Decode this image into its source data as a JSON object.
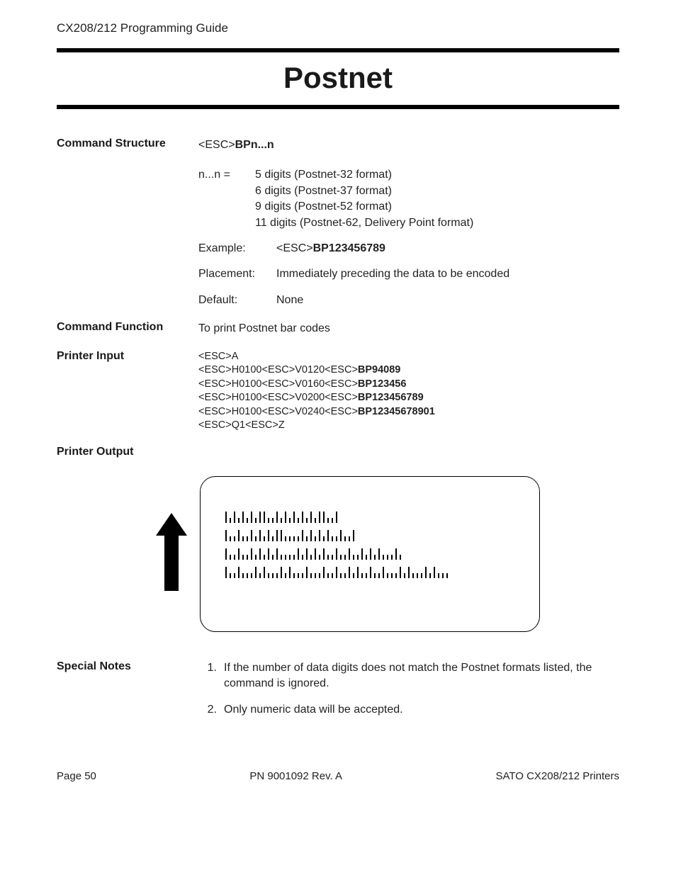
{
  "header": {
    "running_head": "CX208/212 Programming Guide"
  },
  "title": "Postnet",
  "command_structure": {
    "label": "Command Structure",
    "syntax_prefix": "<ESC>",
    "syntax_bold": "BPn...n",
    "param_label": "n...n  =",
    "param_lines": [
      "5 digits (Postnet-32 format)",
      "6 digits (Postnet-37 format)",
      "9 digits (Postnet-52 format)",
      "11 digits (Postnet-62, Delivery Point format)"
    ],
    "example_label": "Example:",
    "example_prefix": "<ESC>",
    "example_bold": "BP123456789",
    "placement_label": "Placement:",
    "placement_value": "Immediately preceding the data to be encoded",
    "default_label": "Default:",
    "default_value": "None"
  },
  "command_function": {
    "label": "Command Function",
    "text": "To print Postnet bar codes"
  },
  "printer_input": {
    "label": "Printer Input",
    "lines": [
      {
        "plain": "<ESC>A",
        "bold": ""
      },
      {
        "plain": "<ESC>H0100<ESC>V0120<ESC>",
        "bold": "BP94089"
      },
      {
        "plain": "<ESC>H0100<ESC>V0160<ESC>",
        "bold": "BP123456"
      },
      {
        "plain": "<ESC>H0100<ESC>V0200<ESC>",
        "bold": "BP123456789"
      },
      {
        "plain": "<ESC>H0100<ESC>V0240<ESC>",
        "bold": "BP12345678901"
      },
      {
        "plain": "<ESC>Q1<ESC>Z",
        "bold": ""
      }
    ]
  },
  "printer_output": {
    "label": "Printer Output",
    "arrow_color": "#000000",
    "frame_border_color": "#000000",
    "bar_color": "#000000",
    "barcodes": [
      "tststststtsststststststtsst",
      "tsstsststststtsssststststsstsst",
      "tsstsststststsssststststsstsstsstststsssts",
      "tsstssststssststssstssstsstsststsstsstssststssststsss"
    ]
  },
  "special_notes": {
    "label": "Special Notes",
    "items": [
      "If the number of data digits does not match the Postnet formats listed, the command is ignored.",
      "Only numeric data will be accepted."
    ]
  },
  "footer": {
    "left": "Page 50",
    "center": "PN 9001092 Rev. A",
    "right": "SATO CX208/212 Printers"
  }
}
